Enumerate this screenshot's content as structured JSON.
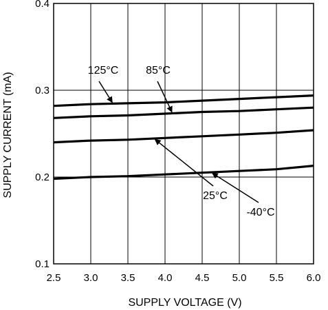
{
  "chart_data": {
    "type": "line",
    "title": "",
    "xlabel": "SUPPLY VOLTAGE (V)",
    "ylabel": "SUPPLY CURRENT (mA)",
    "xlim": [
      2.5,
      6.0
    ],
    "ylim": [
      0.1,
      0.4
    ],
    "xticks": [
      "2.5",
      "3.0",
      "3.5",
      "4.0",
      "4.5",
      "5.0",
      "5.5",
      "6.0"
    ],
    "yticks": [
      "0.1",
      "0.2",
      "0.3",
      "0.4"
    ],
    "grid": "vertical lines at each x tick; horizontal lines at 0.2 and 0.3",
    "line_color": "#000000",
    "series": [
      {
        "name": "125°C",
        "x": [
          2.5,
          3.0,
          3.5,
          4.0,
          4.5,
          5.0,
          5.5,
          6.0
        ],
        "values": [
          0.282,
          0.284,
          0.285,
          0.286,
          0.288,
          0.29,
          0.292,
          0.294
        ]
      },
      {
        "name": "85°C",
        "x": [
          2.5,
          3.0,
          3.5,
          4.0,
          4.5,
          5.0,
          5.5,
          6.0
        ],
        "values": [
          0.268,
          0.27,
          0.271,
          0.273,
          0.275,
          0.276,
          0.278,
          0.28
        ]
      },
      {
        "name": "25°C",
        "x": [
          2.5,
          3.0,
          3.5,
          4.0,
          4.5,
          5.0,
          5.5,
          6.0
        ],
        "values": [
          0.24,
          0.242,
          0.243,
          0.245,
          0.247,
          0.249,
          0.251,
          0.254
        ]
      },
      {
        "name": "-40°C",
        "x": [
          2.5,
          3.0,
          3.5,
          4.0,
          4.5,
          5.0,
          5.5,
          6.0
        ],
        "values": [
          0.198,
          0.2,
          0.201,
          0.203,
          0.205,
          0.207,
          0.209,
          0.213
        ]
      }
    ],
    "annotations": [
      {
        "text": "125°C",
        "series": "125°C"
      },
      {
        "text": "85°C",
        "series": "85°C"
      },
      {
        "text": "25°C",
        "series": "25°C"
      },
      {
        "text": "-40°C",
        "series": "-40°C"
      }
    ]
  }
}
